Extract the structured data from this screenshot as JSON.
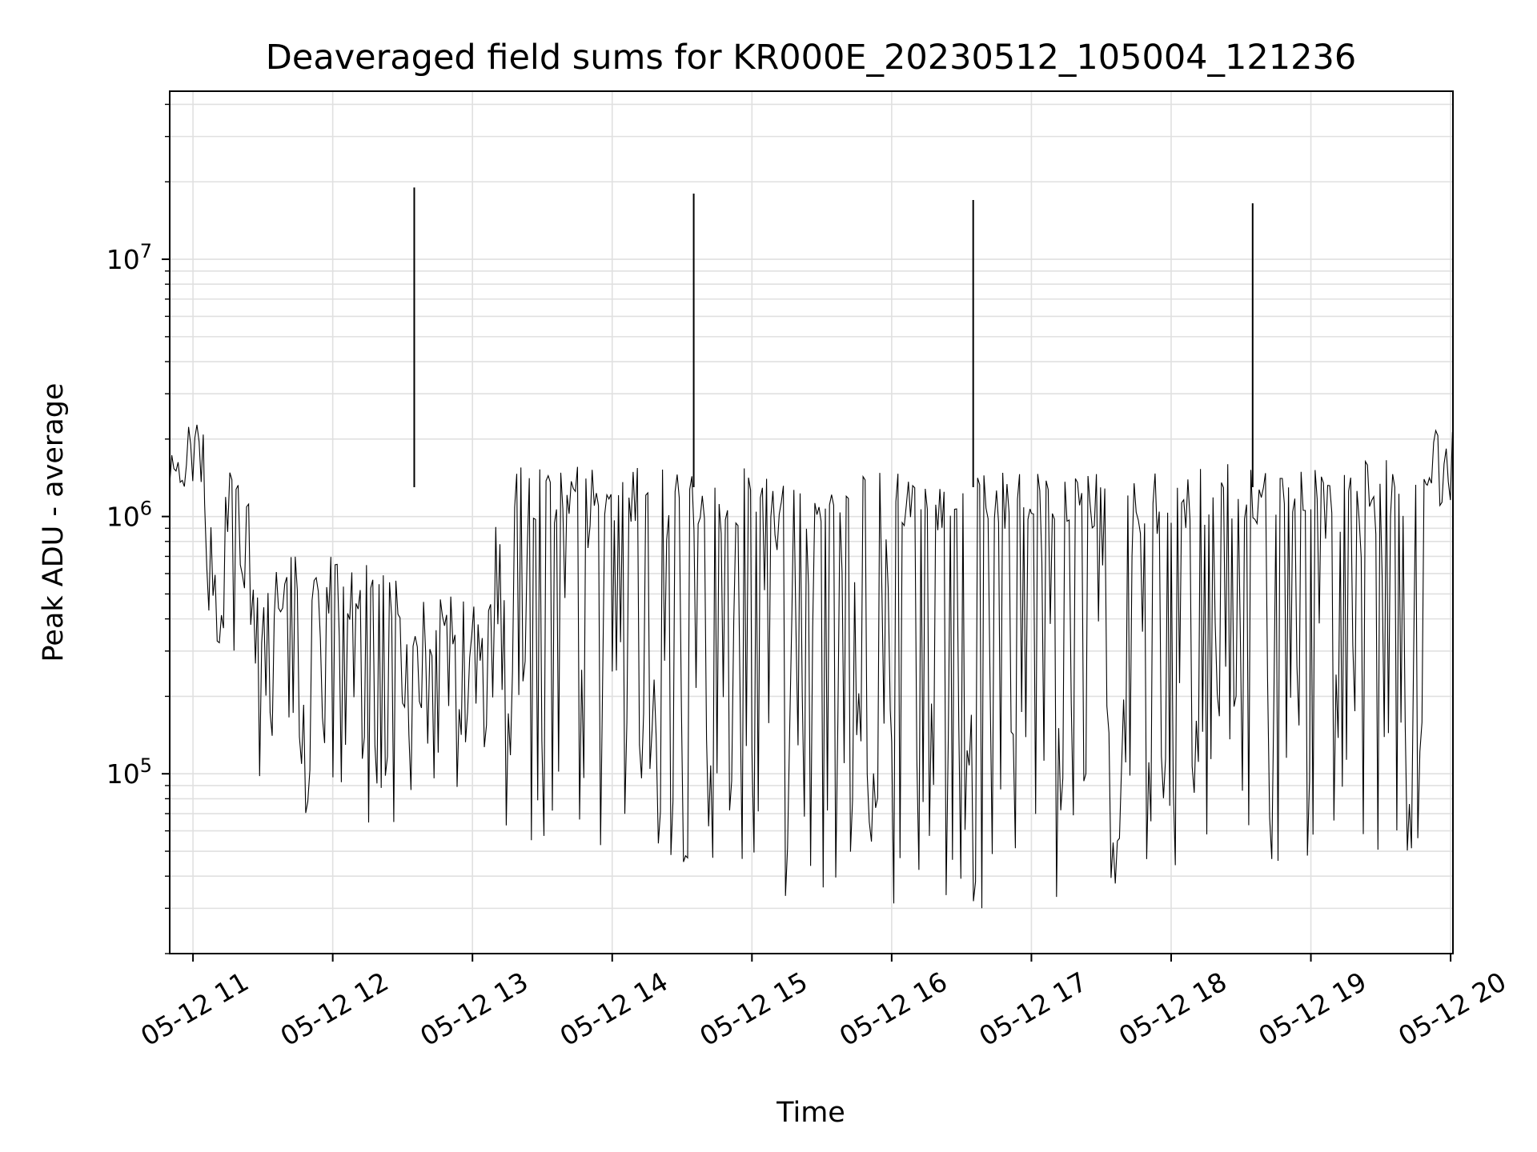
{
  "chart_data": {
    "type": "line",
    "title": "Deaveraged field sums for KR000E_20230512_105004_121236",
    "xlabel": "Time",
    "ylabel": "Peak ADU - average",
    "x_tick_labels": [
      "05-12 11",
      "05-12 12",
      "05-12 13",
      "05-12 14",
      "05-12 15",
      "05-12 16",
      "05-12 17",
      "05-12 18",
      "05-12 19",
      "05-12 20"
    ],
    "y_tick_labels": [
      {
        "value": 100000,
        "base": "10",
        "exp": "5"
      },
      {
        "value": 1000000,
        "base": "10",
        "exp": "6"
      },
      {
        "value": 10000000,
        "base": "10",
        "exp": "7"
      }
    ],
    "xlim": [
      "2023-05-12 10:50",
      "2023-05-12 20:01"
    ],
    "ylim": [
      20000,
      45000000
    ],
    "yscale": "log",
    "grid": true,
    "line_color": "#000000",
    "series": [
      {
        "note_segments": true,
        "envelope": [
          {
            "start": "2023-05-12 10:50",
            "end": "2023-05-12 11:05",
            "low": 1200000,
            "high": 2500000
          },
          {
            "start": "2023-05-12 11:05",
            "end": "2023-05-12 11:25",
            "low": 300000,
            "high": 1500000
          },
          {
            "start": "2023-05-12 11:25",
            "end": "2023-05-12 12:30",
            "low": 60000,
            "high": 700000
          },
          {
            "start": "2023-05-12 12:30",
            "end": "2023-05-12 13:10",
            "low": 80000,
            "high": 500000
          },
          {
            "start": "2023-05-12 13:10",
            "end": "2023-05-12 14:00",
            "low": 50000,
            "high": 1600000
          },
          {
            "start": "2023-05-12 14:00",
            "end": "2023-05-12 15:00",
            "low": 45000,
            "high": 1550000
          },
          {
            "start": "2023-05-12 15:00",
            "end": "2023-05-12 16:00",
            "low": 32000,
            "high": 1500000
          },
          {
            "start": "2023-05-12 16:00",
            "end": "2023-05-12 17:00",
            "low": 30000,
            "high": 1500000
          },
          {
            "start": "2023-05-12 17:00",
            "end": "2023-05-12 18:00",
            "low": 32000,
            "high": 1500000
          },
          {
            "start": "2023-05-12 18:00",
            "end": "2023-05-12 19:00",
            "low": 40000,
            "high": 1600000
          },
          {
            "start": "2023-05-12 19:00",
            "end": "2023-05-12 19:50",
            "low": 50000,
            "high": 1700000
          },
          {
            "start": "2023-05-12 19:50",
            "end": "2023-05-12 20:01",
            "low": 1000000,
            "high": 2200000
          }
        ],
        "spikes": [
          {
            "x": "2023-05-12 12:35",
            "y": 19000000
          },
          {
            "x": "2023-05-12 14:35",
            "y": 18000000
          },
          {
            "x": "2023-05-12 16:35",
            "y": 17000000
          },
          {
            "x": "2023-05-12 18:35",
            "y": 16500000
          }
        ]
      }
    ]
  }
}
